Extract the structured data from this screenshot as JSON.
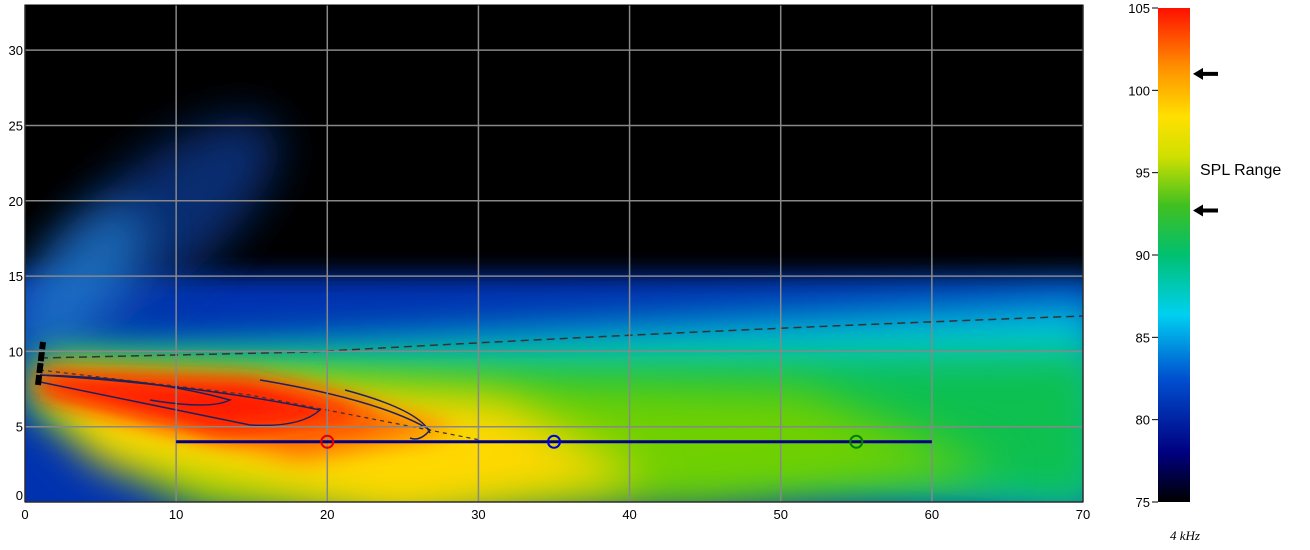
{
  "chart_data": {
    "type": "heatmap",
    "xlim": [
      0,
      70
    ],
    "ylim": [
      0,
      33
    ],
    "xticks": [
      0,
      10,
      20,
      30,
      40,
      50,
      60,
      70
    ],
    "yticks": [
      0,
      5,
      10,
      15,
      20,
      25,
      30
    ],
    "grid": true,
    "audience_line": {
      "x": [
        10,
        60
      ],
      "y": [
        4,
        4
      ],
      "color": "#000080"
    },
    "listeners": {
      "x": [
        20,
        35,
        55
      ],
      "y": [
        4,
        4,
        4
      ],
      "colors": [
        "#e00000",
        "#0000e0",
        "#008000"
      ]
    },
    "colorbar": {
      "label": "SPL Range",
      "lim": [
        75,
        105
      ],
      "ticks": [
        75,
        80,
        85,
        90,
        95,
        100,
        105
      ],
      "markers": [
        101,
        92.7
      ]
    },
    "frequency_label": "4 kHz"
  }
}
